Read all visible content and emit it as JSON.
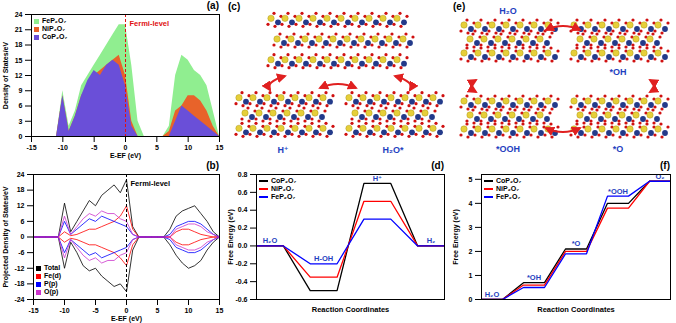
{
  "chart_data": [
    {
      "panel": "(a)",
      "type": "area",
      "xlabel": "E-EF (eV)",
      "ylabel": "Density of States/eV",
      "x": [
        -15,
        -14,
        -13,
        -12,
        -11,
        -10,
        -9,
        -8,
        -7,
        -6,
        -5,
        -4,
        -3,
        -2,
        -1,
        0,
        1,
        2,
        3,
        4,
        5,
        6,
        7,
        8,
        9,
        10,
        11,
        12,
        13,
        14,
        15
      ],
      "series": [
        {
          "name": "FeP₂O₇",
          "color": "#90ee90",
          "values": [
            0,
            0,
            0,
            0,
            0,
            9,
            2,
            5,
            10,
            12,
            14,
            16,
            18,
            20,
            22,
            22,
            14,
            3,
            0,
            0,
            0,
            0,
            2,
            12,
            16,
            15,
            13,
            12,
            10,
            5,
            0
          ]
        },
        {
          "name": "NiP₂O₇",
          "color": "#e8632a",
          "values": [
            0,
            0,
            0,
            0,
            0,
            8,
            1,
            4,
            8,
            10,
            12,
            13,
            14,
            15,
            16,
            12,
            3,
            0,
            0,
            0,
            0,
            0,
            1,
            5,
            6,
            8,
            8,
            7,
            5,
            2,
            0
          ]
        },
        {
          "name": "CoP₂O₇",
          "color": "#6a4fd8",
          "values": [
            0,
            0,
            0,
            0,
            0,
            8,
            1,
            4,
            8,
            11,
            13,
            12,
            14,
            15,
            14,
            10,
            2,
            0,
            0,
            0,
            0,
            0,
            0,
            3,
            6,
            5,
            4,
            3,
            2,
            1,
            0
          ]
        }
      ],
      "xlim": [
        -15,
        15
      ],
      "xticks": [
        -15,
        -10,
        -5,
        0,
        5,
        10,
        15
      ],
      "ylim": [
        0,
        24
      ],
      "yticks": [
        0,
        3,
        6,
        9,
        12,
        15,
        18,
        21,
        24
      ],
      "annotations": [
        {
          "text": "Fermi-level",
          "x": 0,
          "color": "#e01010",
          "line_style": "dashed"
        }
      ],
      "legend": "top-left"
    },
    {
      "panel": "(b)",
      "type": "line",
      "xlabel": "E-EF (eV)",
      "ylabel": "Projected Density of States/eV",
      "x": [
        -15,
        -14,
        -13,
        -12,
        -11,
        -10,
        -9,
        -8,
        -7,
        -6,
        -5,
        -4,
        -3,
        -2,
        -1,
        0,
        1,
        2,
        3,
        4,
        5,
        6,
        7,
        8,
        9,
        10,
        11,
        12,
        13,
        14,
        15
      ],
      "series": [
        {
          "name": "Total",
          "color": "#000000",
          "values": [
            0,
            0,
            0,
            0,
            0,
            13,
            2,
            6,
            10,
            14,
            12,
            16,
            18,
            20,
            17,
            22,
            4,
            0,
            0,
            0,
            0,
            0,
            3,
            8,
            10,
            11,
            12,
            9,
            6,
            2,
            0
          ],
          "values_down": [
            0,
            0,
            0,
            0,
            0,
            -12,
            -2,
            -6,
            -11,
            -13,
            -12,
            -15,
            -17,
            -19,
            -18,
            -21,
            -5,
            0,
            0,
            0,
            0,
            0,
            -3,
            -7,
            -10,
            -12,
            -11,
            -9,
            -5,
            -2,
            0
          ]
        },
        {
          "name": "Fe(d)",
          "color": "#ff0000",
          "values": [
            0,
            0,
            0,
            0,
            0,
            2,
            0.5,
            1,
            2,
            3,
            3,
            4,
            5,
            6,
            8,
            12,
            3,
            0,
            0,
            0,
            0,
            0,
            0,
            2,
            3,
            3,
            2,
            1,
            0.5,
            0,
            0
          ],
          "values_down": [
            0,
            0,
            0,
            0,
            0,
            -2,
            -0.5,
            -1,
            -2,
            -3,
            -3,
            -4,
            -5,
            -6,
            -8,
            -11,
            -3,
            0,
            0,
            0,
            0,
            0,
            0,
            -2,
            -3,
            -3,
            -2,
            -1,
            -0.5,
            0,
            0
          ]
        },
        {
          "name": "P(p)",
          "color": "#0000ff",
          "values": [
            0,
            0,
            0,
            0,
            0,
            6,
            1,
            3,
            5,
            7,
            6,
            8,
            7,
            6,
            5,
            4,
            1,
            0,
            0,
            0,
            0,
            0,
            1,
            4,
            5,
            6,
            6,
            5,
            3,
            1,
            0
          ],
          "values_down": [
            0,
            0,
            0,
            0,
            0,
            -6,
            -1,
            -3,
            -5,
            -7,
            -6,
            -8,
            -7,
            -6,
            -5,
            -4,
            -1,
            0,
            0,
            0,
            0,
            0,
            -1,
            -4,
            -5,
            -6,
            -6,
            -5,
            -3,
            -1,
            0
          ]
        },
        {
          "name": "O(p)",
          "color": "#cc33cc",
          "values": [
            0,
            0,
            0,
            0,
            0,
            8,
            1,
            4,
            7,
            9,
            8,
            10,
            9,
            9,
            7,
            6,
            1,
            0,
            0,
            0,
            0,
            0,
            0,
            3,
            4,
            5,
            5,
            4,
            2,
            1,
            0
          ],
          "values_down": [
            0,
            0,
            0,
            0,
            0,
            -8,
            -1,
            -4,
            -7,
            -9,
            -8,
            -10,
            -9,
            -9,
            -7,
            -6,
            -1,
            0,
            0,
            0,
            0,
            0,
            0,
            -3,
            -4,
            -5,
            -5,
            -4,
            -2,
            -1,
            0
          ]
        }
      ],
      "xlim": [
        -15,
        15
      ],
      "xticks": [
        -15,
        -10,
        -5,
        0,
        5,
        10,
        15
      ],
      "ylim": [
        -24,
        24
      ],
      "yticks": [
        -24,
        -18,
        -12,
        -6,
        0,
        6,
        12,
        18,
        24
      ],
      "annotations": [
        {
          "text": "Fermi-level",
          "x": 0,
          "color": "#000000",
          "line_style": "dashed"
        }
      ],
      "legend": "bottom-left"
    },
    {
      "panel": "(d)",
      "type": "step",
      "xlabel": "Reaction Coordinates",
      "ylabel": "Free Energy (eV)",
      "categories": [
        "H₂O",
        "H-OH",
        "H⁺",
        "H₂"
      ],
      "series": [
        {
          "name": "CoP₂O₇",
          "color": "#000000",
          "values": [
            0,
            -0.5,
            0.7,
            0
          ]
        },
        {
          "name": "NiP₂O₇",
          "color": "#ff0000",
          "values": [
            0,
            -0.35,
            0.5,
            0
          ]
        },
        {
          "name": "FeP₂O₇",
          "color": "#0000ff",
          "values": [
            0,
            -0.2,
            0.3,
            0
          ]
        }
      ],
      "ylim": [
        -0.6,
        0.8
      ],
      "yticks": [
        -0.6,
        -0.4,
        -0.2,
        {
          "value": 0,
          "label": "0.0"
        },
        0.2,
        0.4,
        0.6,
        0.8
      ],
      "tick_labels": "y",
      "legend": "top-left"
    },
    {
      "panel": "(f)",
      "type": "step",
      "xlabel": "Reaction Coordinates",
      "ylabel": "Free Energy (eV)",
      "categories": [
        "H₂O",
        "*OH",
        "*O",
        "*OOH",
        "O₂"
      ],
      "series": [
        {
          "name": "CoP₂O₇",
          "color": "#000000",
          "values": [
            0,
            0.7,
            2.1,
            4.0,
            4.92
          ]
        },
        {
          "name": "NiP₂O₇",
          "color": "#ff0000",
          "values": [
            0,
            0.6,
            2.0,
            3.8,
            4.92
          ]
        },
        {
          "name": "FeP₂O₇",
          "color": "#0000ff",
          "values": [
            0,
            0.5,
            1.9,
            4.3,
            4.92
          ]
        }
      ],
      "ylim": [
        0,
        5.2
      ],
      "yticks": [
        0,
        1,
        2,
        3,
        4,
        5
      ],
      "tick_labels": "y",
      "legend": "top-left"
    }
  ],
  "diagrams": [
    {
      "panel": "(c)",
      "labels": [
        "H⁺",
        "H₂O*"
      ]
    },
    {
      "panel": "(e)",
      "labels": [
        "H₂O",
        "*OH",
        "*OOH",
        "*O"
      ]
    }
  ]
}
